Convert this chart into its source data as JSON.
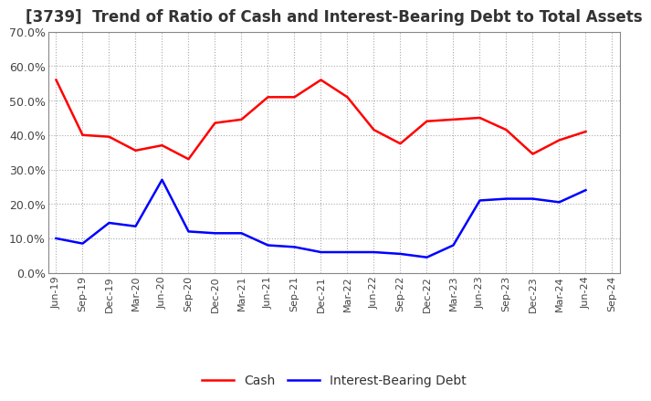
{
  "title": "[3739]  Trend of Ratio of Cash and Interest-Bearing Debt to Total Assets",
  "x_labels": [
    "Jun-19",
    "Sep-19",
    "Dec-19",
    "Mar-20",
    "Jun-20",
    "Sep-20",
    "Dec-20",
    "Mar-21",
    "Jun-21",
    "Sep-21",
    "Dec-21",
    "Mar-22",
    "Jun-22",
    "Sep-22",
    "Dec-22",
    "Mar-23",
    "Jun-23",
    "Sep-23",
    "Dec-23",
    "Mar-24",
    "Jun-24",
    "Sep-24"
  ],
  "cash": [
    0.56,
    0.4,
    0.395,
    0.355,
    0.37,
    0.33,
    0.435,
    0.445,
    0.51,
    0.51,
    0.56,
    0.51,
    0.415,
    0.375,
    0.44,
    0.445,
    0.45,
    0.415,
    0.345,
    0.385,
    0.41,
    null
  ],
  "debt": [
    0.1,
    0.085,
    0.145,
    0.135,
    0.27,
    0.12,
    0.115,
    0.115,
    0.08,
    0.075,
    0.06,
    0.06,
    0.06,
    0.055,
    0.045,
    0.08,
    0.21,
    0.215,
    0.215,
    0.205,
    0.24,
    null
  ],
  "ylim": [
    0.0,
    0.7
  ],
  "yticks": [
    0.0,
    0.1,
    0.2,
    0.3,
    0.4,
    0.5,
    0.6,
    0.7
  ],
  "cash_color": "#ff0000",
  "debt_color": "#0000ff",
  "background_color": "#ffffff",
  "grid_color": "#aaaaaa",
  "title_fontsize": 12,
  "legend_fontsize": 10
}
